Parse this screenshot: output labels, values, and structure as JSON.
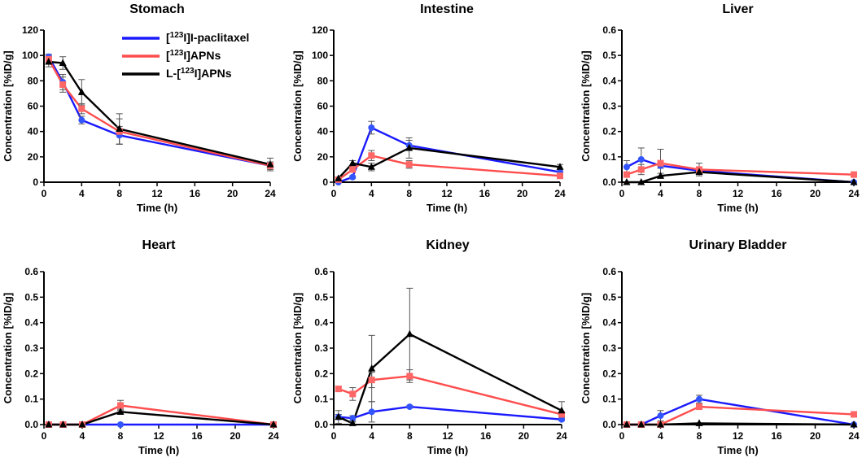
{
  "chart_data": [
    {
      "type": "line",
      "title": "Stomach",
      "xlabel": "Time (h)",
      "ylabel": "Concentration [%ID/g]",
      "xlim": [
        0,
        24
      ],
      "ylim": [
        0,
        120
      ],
      "xticks": [
        0,
        4,
        8,
        12,
        16,
        20,
        24
      ],
      "yticks": [
        0,
        20,
        40,
        60,
        80,
        100,
        120
      ],
      "x": [
        0.5,
        2,
        4,
        8,
        24
      ],
      "series": [
        {
          "name": "[123I]I-paclitaxel",
          "values": [
            99,
            79,
            49,
            37,
            13
          ],
          "errors": [
            2,
            6,
            3,
            7,
            2
          ]
        },
        {
          "name": "[123I]APNs",
          "values": [
            97,
            77,
            58,
            40,
            13
          ],
          "errors": [
            3,
            6,
            4,
            10,
            3
          ]
        },
        {
          "name": "L-[123I]APNs",
          "values": [
            95,
            94,
            71,
            42,
            14
          ],
          "errors": [
            4,
            5,
            10,
            12,
            5
          ]
        }
      ]
    },
    {
      "type": "line",
      "title": "Intestine",
      "xlabel": "Time (h)",
      "ylabel": "Concentration [%ID/g]",
      "xlim": [
        0,
        24
      ],
      "ylim": [
        0,
        120
      ],
      "xticks": [
        0,
        4,
        8,
        12,
        16,
        20,
        24
      ],
      "yticks": [
        0,
        20,
        40,
        60,
        80,
        100,
        120
      ],
      "x": [
        0.5,
        2,
        4,
        8,
        24
      ],
      "series": [
        {
          "name": "[123I]I-paclitaxel",
          "values": [
            0,
            4,
            43,
            29,
            8
          ],
          "errors": [
            1,
            1,
            5,
            4,
            1
          ]
        },
        {
          "name": "[123I]APNs",
          "values": [
            2,
            10,
            21,
            14,
            5
          ],
          "errors": [
            1,
            2,
            4,
            3,
            1
          ]
        },
        {
          "name": "L-[123I]APNs",
          "values": [
            3,
            15,
            12,
            27,
            12
          ],
          "errors": [
            1,
            2,
            3,
            8,
            2
          ]
        }
      ]
    },
    {
      "type": "line",
      "title": "Liver",
      "xlabel": "Time (h)",
      "ylabel": "Concentration [%ID/g]",
      "xlim": [
        0,
        24
      ],
      "ylim": [
        0,
        0.6
      ],
      "xticks": [
        0,
        4,
        8,
        12,
        16,
        20,
        24
      ],
      "yticks": [
        0.0,
        0.1,
        0.2,
        0.3,
        0.4,
        0.5,
        0.6
      ],
      "x": [
        0.5,
        2,
        4,
        8,
        24
      ],
      "series": [
        {
          "name": "[123I]I-paclitaxel",
          "values": [
            0.06,
            0.09,
            0.065,
            0.045,
            0.0
          ],
          "errors": [
            0.025,
            0.045,
            0.01,
            0.01,
            0.0
          ]
        },
        {
          "name": "[123I]APNs",
          "values": [
            0.03,
            0.05,
            0.075,
            0.05,
            0.03
          ],
          "errors": [
            0.01,
            0.02,
            0.055,
            0.025,
            0.005
          ]
        },
        {
          "name": "L-[123I]APNs",
          "values": [
            0.0,
            0.0,
            0.025,
            0.04,
            0.0
          ],
          "errors": [
            0.0,
            0.0,
            0.01,
            0.01,
            0.0
          ]
        }
      ]
    },
    {
      "type": "line",
      "title": "Heart",
      "xlabel": "Time (h)",
      "ylabel": "Concentration [%ID/g]",
      "xlim": [
        0,
        24
      ],
      "ylim": [
        0,
        0.6
      ],
      "xticks": [
        0,
        4,
        8,
        12,
        16,
        20,
        24
      ],
      "yticks": [
        0.0,
        0.1,
        0.2,
        0.3,
        0.4,
        0.5,
        0.6
      ],
      "x": [
        0.5,
        2,
        4,
        8,
        24
      ],
      "series": [
        {
          "name": "[123I]I-paclitaxel",
          "values": [
            0.0,
            0.0,
            0.0,
            0.0,
            0.0
          ],
          "errors": [
            0,
            0,
            0,
            0,
            0
          ]
        },
        {
          "name": "[123I]APNs",
          "values": [
            0.0,
            0.0,
            0.0,
            0.075,
            0.0
          ],
          "errors": [
            0,
            0,
            0,
            0.02,
            0
          ]
        },
        {
          "name": "L-[123I]APNs",
          "values": [
            0.0,
            0.0,
            0.0,
            0.05,
            0.0
          ],
          "errors": [
            0,
            0,
            0,
            0.01,
            0
          ]
        }
      ]
    },
    {
      "type": "line",
      "title": "Kidney",
      "xlabel": "Time (h)",
      "ylabel": "Concentration [%ID/g]",
      "xlim": [
        0,
        24
      ],
      "ylim": [
        0,
        0.6
      ],
      "xticks": [
        0,
        4,
        8,
        12,
        16,
        20,
        24
      ],
      "yticks": [
        0.0,
        0.1,
        0.2,
        0.3,
        0.4,
        0.5,
        0.6
      ],
      "x": [
        0.5,
        2,
        4,
        8,
        24
      ],
      "series": [
        {
          "name": "[123I]I-paclitaxel",
          "values": [
            0.03,
            0.025,
            0.05,
            0.07,
            0.02
          ],
          "errors": [
            0.025,
            0.01,
            0.04,
            0.005,
            0.005
          ]
        },
        {
          "name": "[123I]APNs",
          "values": [
            0.14,
            0.12,
            0.175,
            0.19,
            0.04
          ],
          "errors": [
            0.01,
            0.025,
            0.03,
            0.025,
            0.01
          ]
        },
        {
          "name": "L-[123I]APNs",
          "values": [
            0.03,
            0.005,
            0.22,
            0.355,
            0.055
          ],
          "errors": [
            0.01,
            0.005,
            0.13,
            0.18,
            0.035
          ]
        }
      ]
    },
    {
      "type": "line",
      "title": "Urinary Bladder",
      "xlabel": "Time (h)",
      "ylabel": "Concentration [%ID/g]",
      "xlim": [
        0,
        24
      ],
      "ylim": [
        0,
        0.6
      ],
      "xticks": [
        0,
        4,
        8,
        12,
        16,
        20,
        24
      ],
      "yticks": [
        0.0,
        0.1,
        0.2,
        0.3,
        0.4,
        0.5,
        0.6
      ],
      "x": [
        0.5,
        2,
        4,
        8,
        24
      ],
      "series": [
        {
          "name": "[123I]I-paclitaxel",
          "values": [
            0.0,
            0.0,
            0.035,
            0.1,
            0.0
          ],
          "errors": [
            0,
            0,
            0.02,
            0.015,
            0
          ]
        },
        {
          "name": "[123I]APNs",
          "values": [
            0.0,
            0.0,
            0.0,
            0.07,
            0.04
          ],
          "errors": [
            0,
            0,
            0,
            0.01,
            0.01
          ]
        },
        {
          "name": "L-[123I]APNs",
          "values": [
            0.0,
            0.0,
            0.0,
            0.005,
            0.0
          ],
          "errors": [
            0,
            0,
            0,
            0,
            0
          ]
        }
      ]
    }
  ],
  "legend": [
    {
      "prefix": "[",
      "sup": "123",
      "suffix": "I]I-paclitaxel",
      "color": "#1a1aff",
      "marker": "circle"
    },
    {
      "prefix": "[",
      "sup": "123",
      "suffix": "I]APNs",
      "color": "#ff4d4d",
      "marker": "square"
    },
    {
      "prefix": "L-[",
      "sup": "123",
      "suffix": "I]APNs",
      "color": "#000000",
      "marker": "triangle"
    }
  ],
  "colors": {
    "paclitaxel_line": "#1a1aff",
    "paclitaxel_marker": "#3355ff",
    "apns_line": "#ff4d4d",
    "apns_marker": "#ff6666",
    "lapns_line": "#000000",
    "lapns_marker": "#000000",
    "errorbar": "#555555"
  }
}
